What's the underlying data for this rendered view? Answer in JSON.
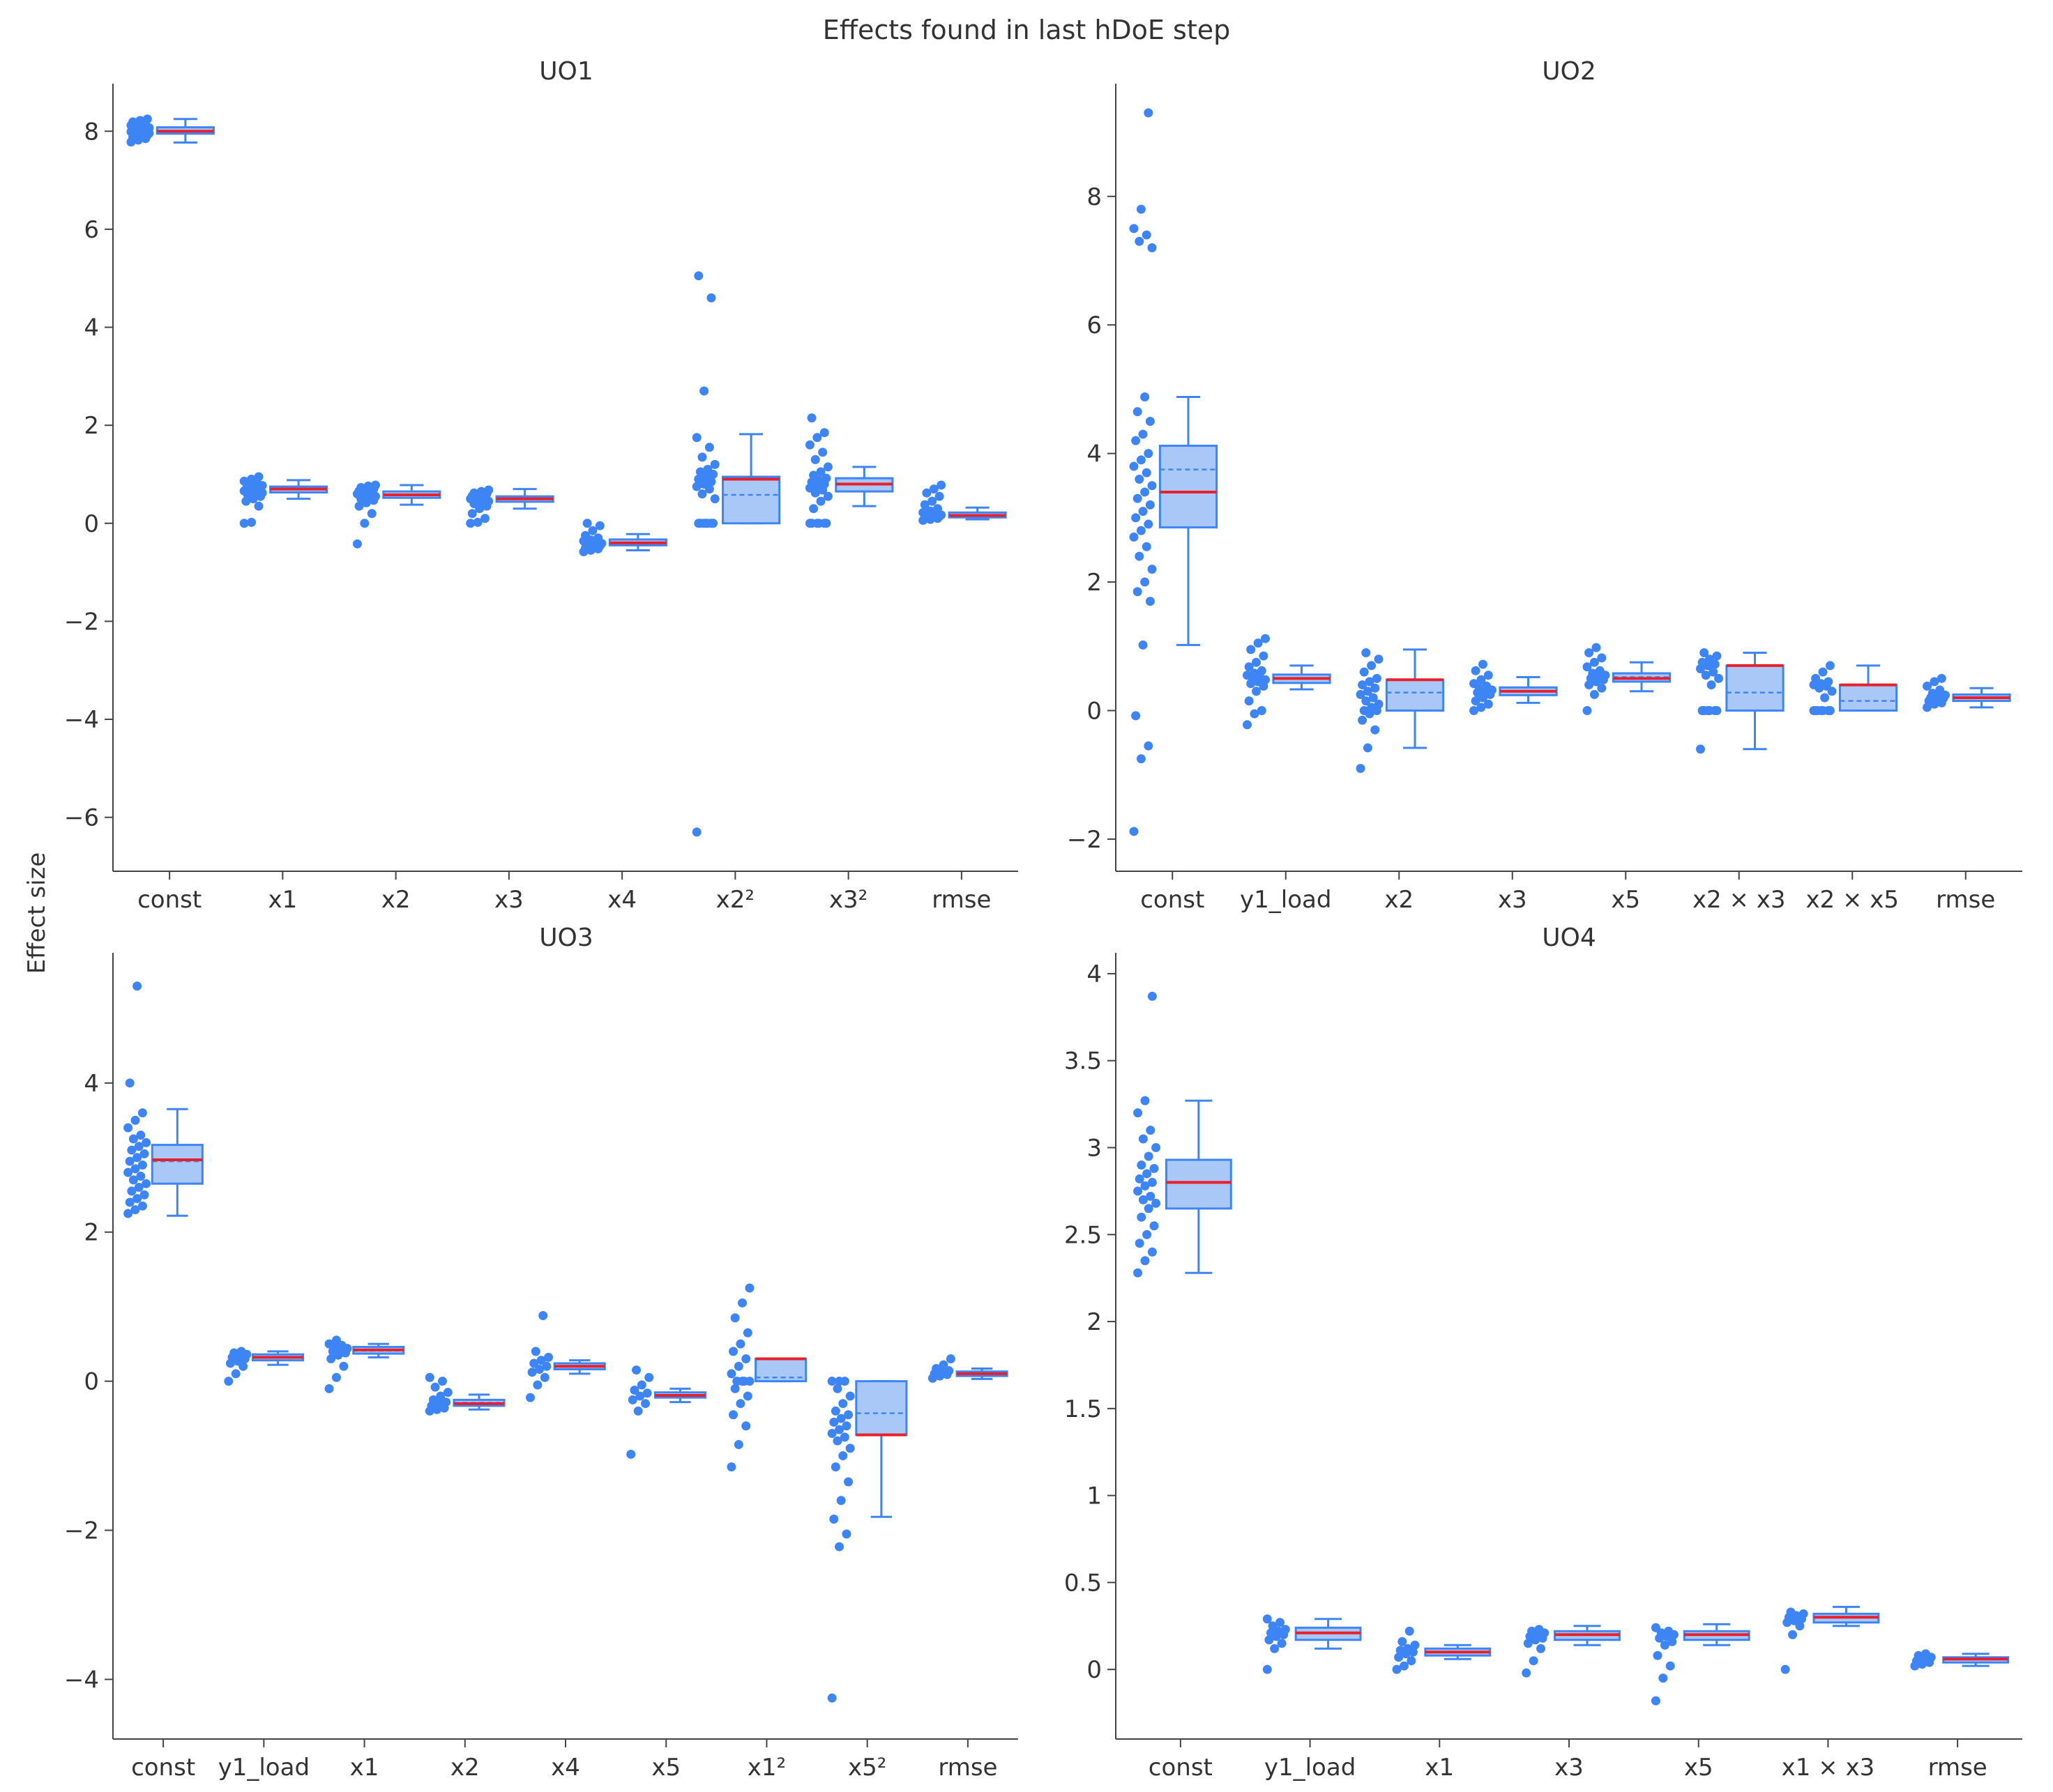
{
  "figure": {
    "title": "Effects found in last hDoE step",
    "ylabel": "Effect size",
    "colors": {
      "point": "#3d85f5",
      "box_fill": "#a9c7f7",
      "box_line": "#3d85f5",
      "median": "#e8202a",
      "mean": "#3d85f5",
      "axis": "#444444"
    }
  },
  "chart_data": [
    {
      "type": "box",
      "title": "UO1",
      "ylim": [
        -7.1,
        8.9
      ],
      "yticks": [
        8,
        6,
        4,
        2,
        0,
        -2,
        -4,
        -6
      ],
      "ytick_labels": [
        "8",
        "6",
        "4",
        "2",
        "0",
        "−2",
        "−4",
        "−6"
      ],
      "categories": [
        {
          "label": "const",
          "q1": 7.95,
          "median": 8.0,
          "q3": 8.08,
          "lower": 7.77,
          "upper": 8.25,
          "mean": 8.0,
          "points": [
            7.78,
            7.82,
            7.85,
            7.88,
            7.9,
            7.92,
            7.94,
            7.95,
            7.96,
            7.97,
            7.98,
            7.99,
            8.0,
            8.01,
            8.02,
            8.03,
            8.04,
            8.05,
            8.06,
            8.07,
            8.08,
            8.1,
            8.12,
            8.14,
            8.16,
            8.19,
            8.22,
            8.25
          ]
        },
        {
          "label": "x1",
          "q1": 0.63,
          "median": 0.7,
          "q3": 0.75,
          "lower": 0.5,
          "upper": 0.88,
          "mean": 0.69,
          "points": [
            0.0,
            0.02,
            0.35,
            0.45,
            0.5,
            0.55,
            0.58,
            0.6,
            0.62,
            0.63,
            0.65,
            0.66,
            0.68,
            0.69,
            0.7,
            0.71,
            0.72,
            0.74,
            0.75,
            0.77,
            0.8,
            0.83,
            0.86,
            0.9,
            0.95
          ]
        },
        {
          "label": "x2",
          "q1": 0.52,
          "median": 0.58,
          "q3": 0.65,
          "lower": 0.38,
          "upper": 0.78,
          "mean": 0.58,
          "points": [
            -0.42,
            0.0,
            0.2,
            0.35,
            0.42,
            0.47,
            0.5,
            0.53,
            0.55,
            0.57,
            0.58,
            0.6,
            0.62,
            0.64,
            0.66,
            0.68,
            0.7,
            0.73,
            0.76,
            0.78
          ]
        },
        {
          "label": "x3",
          "q1": 0.44,
          "median": 0.5,
          "q3": 0.55,
          "lower": 0.3,
          "upper": 0.7,
          "mean": 0.49,
          "points": [
            0.0,
            0.02,
            0.1,
            0.2,
            0.3,
            0.35,
            0.4,
            0.43,
            0.45,
            0.47,
            0.49,
            0.5,
            0.52,
            0.54,
            0.56,
            0.58,
            0.6,
            0.62,
            0.65,
            0.68
          ]
        },
        {
          "label": "x4",
          "q1": -0.45,
          "median": -0.4,
          "q3": -0.33,
          "lower": -0.55,
          "upper": -0.22,
          "mean": -0.4,
          "points": [
            -0.58,
            -0.55,
            -0.52,
            -0.5,
            -0.48,
            -0.46,
            -0.44,
            -0.42,
            -0.41,
            -0.4,
            -0.38,
            -0.36,
            -0.34,
            -0.3,
            -0.25,
            -0.15,
            -0.05,
            0.0
          ]
        },
        {
          "label": "x2²",
          "q1": 0.0,
          "median": 0.9,
          "q3": 0.95,
          "lower": 0.0,
          "upper": 1.82,
          "mean": 0.58,
          "points": [
            -6.3,
            0.0,
            0.0,
            0.0,
            0.0,
            0.0,
            0.0,
            0.0,
            0.5,
            0.6,
            0.7,
            0.75,
            0.8,
            0.85,
            0.9,
            0.95,
            1.0,
            1.05,
            1.1,
            1.2,
            1.35,
            1.55,
            1.75,
            2.7,
            4.6,
            5.05
          ]
        },
        {
          "label": "x3²",
          "q1": 0.65,
          "median": 0.8,
          "q3": 0.92,
          "lower": 0.35,
          "upper": 1.15,
          "mean": 0.79,
          "points": [
            0.0,
            0.0,
            0.0,
            0.0,
            0.0,
            0.0,
            0.3,
            0.45,
            0.55,
            0.62,
            0.68,
            0.72,
            0.76,
            0.8,
            0.84,
            0.88,
            0.92,
            0.98,
            1.05,
            1.15,
            1.3,
            1.45,
            1.6,
            1.75,
            1.85,
            2.15
          ]
        },
        {
          "label": "rmse",
          "q1": 0.12,
          "median": 0.16,
          "q3": 0.22,
          "lower": 0.08,
          "upper": 0.32,
          "mean": 0.17,
          "points": [
            0.06,
            0.08,
            0.1,
            0.12,
            0.13,
            0.14,
            0.15,
            0.16,
            0.17,
            0.18,
            0.2,
            0.22,
            0.25,
            0.3,
            0.38,
            0.45,
            0.55,
            0.62,
            0.7,
            0.78
          ]
        }
      ]
    },
    {
      "type": "box",
      "title": "UO2",
      "ylim": [
        -2.5,
        9.7
      ],
      "yticks": [
        8,
        6,
        4,
        2,
        0,
        -2
      ],
      "ytick_labels": [
        "8",
        "6",
        "4",
        "2",
        "0",
        "−2"
      ],
      "categories": [
        {
          "label": "const",
          "q1": 2.85,
          "median": 3.4,
          "q3": 4.12,
          "lower": 1.02,
          "upper": 4.88,
          "mean": 3.75,
          "points": [
            -1.88,
            -0.75,
            -0.55,
            -0.08,
            1.02,
            1.7,
            1.85,
            2.0,
            2.2,
            2.4,
            2.55,
            2.7,
            2.8,
            2.9,
            3.0,
            3.1,
            3.2,
            3.3,
            3.4,
            3.5,
            3.6,
            3.7,
            3.8,
            3.9,
            4.0,
            4.2,
            4.3,
            4.5,
            4.65,
            4.88,
            7.2,
            7.3,
            7.4,
            7.5,
            7.8,
            9.3
          ]
        },
        {
          "label": "y1_load",
          "q1": 0.43,
          "median": 0.5,
          "q3": 0.56,
          "lower": 0.33,
          "upper": 0.7,
          "mean": 0.5,
          "points": [
            -0.22,
            -0.05,
            0.0,
            0.15,
            0.3,
            0.38,
            0.42,
            0.45,
            0.48,
            0.5,
            0.52,
            0.55,
            0.58,
            0.62,
            0.68,
            0.75,
            0.85,
            0.95,
            1.05,
            1.12
          ]
        },
        {
          "label": "x2",
          "q1": 0.0,
          "median": 0.48,
          "q3": 0.48,
          "lower": -0.58,
          "upper": 0.95,
          "mean": 0.28,
          "points": [
            -0.9,
            -0.58,
            -0.3,
            -0.15,
            -0.05,
            0.0,
            0.0,
            0.05,
            0.1,
            0.15,
            0.2,
            0.25,
            0.3,
            0.35,
            0.4,
            0.45,
            0.5,
            0.6,
            0.7,
            0.8,
            0.9
          ]
        },
        {
          "label": "x3",
          "q1": 0.24,
          "median": 0.3,
          "q3": 0.36,
          "lower": 0.12,
          "upper": 0.52,
          "mean": 0.3,
          "points": [
            0.0,
            0.05,
            0.1,
            0.15,
            0.2,
            0.25,
            0.28,
            0.3,
            0.32,
            0.35,
            0.38,
            0.42,
            0.48,
            0.55,
            0.62,
            0.72
          ]
        },
        {
          "label": "x5",
          "q1": 0.45,
          "median": 0.5,
          "q3": 0.58,
          "lower": 0.3,
          "upper": 0.75,
          "mean": 0.52,
          "points": [
            0.0,
            0.25,
            0.35,
            0.4,
            0.45,
            0.48,
            0.5,
            0.52,
            0.55,
            0.58,
            0.62,
            0.68,
            0.75,
            0.82,
            0.9,
            0.98
          ]
        },
        {
          "label": "x2 × x3",
          "q1": 0.0,
          "median": 0.7,
          "q3": 0.7,
          "lower": -0.6,
          "upper": 0.9,
          "mean": 0.28,
          "points": [
            -0.6,
            0.0,
            0.0,
            0.0,
            0.0,
            0.0,
            0.0,
            0.4,
            0.5,
            0.55,
            0.6,
            0.65,
            0.7,
            0.72,
            0.75,
            0.8,
            0.85,
            0.9
          ]
        },
        {
          "label": "x2 × x5",
          "q1": 0.0,
          "median": 0.4,
          "q3": 0.4,
          "lower": 0.0,
          "upper": 0.7,
          "mean": 0.15,
          "points": [
            0.0,
            0.0,
            0.0,
            0.0,
            0.0,
            0.0,
            0.0,
            0.2,
            0.3,
            0.35,
            0.38,
            0.4,
            0.42,
            0.45,
            0.5,
            0.6,
            0.7
          ]
        },
        {
          "label": "rmse",
          "q1": 0.15,
          "median": 0.2,
          "q3": 0.25,
          "lower": 0.05,
          "upper": 0.35,
          "mean": 0.2,
          "points": [
            0.05,
            0.1,
            0.12,
            0.15,
            0.17,
            0.19,
            0.2,
            0.22,
            0.24,
            0.27,
            0.32,
            0.38,
            0.45,
            0.5
          ]
        }
      ]
    },
    {
      "type": "box",
      "title": "UO3",
      "ylim": [
        -4.8,
        5.7
      ],
      "yticks": [
        4,
        2,
        0,
        -2,
        -4
      ],
      "ytick_labels": [
        "4",
        "2",
        "0",
        "−2",
        "−4"
      ],
      "categories": [
        {
          "label": "const",
          "q1": 2.65,
          "median": 2.97,
          "q3": 3.17,
          "lower": 2.22,
          "upper": 3.65,
          "mean": 2.95,
          "points": [
            2.25,
            2.3,
            2.35,
            2.4,
            2.45,
            2.5,
            2.55,
            2.6,
            2.65,
            2.7,
            2.75,
            2.8,
            2.85,
            2.9,
            2.95,
            3.0,
            3.05,
            3.1,
            3.15,
            3.2,
            3.25,
            3.3,
            3.4,
            3.5,
            3.6,
            4.0,
            5.3
          ]
        },
        {
          "label": "y1_load",
          "q1": 0.28,
          "median": 0.32,
          "q3": 0.36,
          "lower": 0.22,
          "upper": 0.4,
          "mean": 0.32,
          "points": [
            0.0,
            0.1,
            0.2,
            0.24,
            0.27,
            0.3,
            0.32,
            0.34,
            0.36,
            0.38,
            0.4
          ]
        },
        {
          "label": "x1",
          "q1": 0.37,
          "median": 0.42,
          "q3": 0.46,
          "lower": 0.32,
          "upper": 0.5,
          "mean": 0.41,
          "points": [
            -0.1,
            0.05,
            0.2,
            0.3,
            0.35,
            0.38,
            0.4,
            0.42,
            0.44,
            0.46,
            0.48,
            0.5,
            0.55
          ]
        },
        {
          "label": "x2",
          "q1": -0.33,
          "median": -0.3,
          "q3": -0.25,
          "lower": -0.38,
          "upper": -0.18,
          "mean": -0.29,
          "points": [
            -0.4,
            -0.38,
            -0.36,
            -0.33,
            -0.3,
            -0.28,
            -0.25,
            -0.2,
            -0.15,
            -0.08,
            0.0,
            0.05
          ]
        },
        {
          "label": "x4",
          "q1": 0.16,
          "median": 0.2,
          "q3": 0.24,
          "lower": 0.1,
          "upper": 0.28,
          "mean": 0.2,
          "points": [
            -0.22,
            -0.05,
            0.05,
            0.12,
            0.16,
            0.2,
            0.24,
            0.28,
            0.32,
            0.4,
            0.88
          ]
        },
        {
          "label": "x5",
          "q1": -0.22,
          "median": -0.19,
          "q3": -0.15,
          "lower": -0.28,
          "upper": -0.1,
          "mean": -0.19,
          "points": [
            -0.98,
            -0.4,
            -0.3,
            -0.25,
            -0.2,
            -0.16,
            -0.12,
            -0.05,
            0.05,
            0.15
          ]
        },
        {
          "label": "x1²",
          "q1": 0.0,
          "median": 0.3,
          "q3": 0.3,
          "lower": 0.0,
          "upper": 0.3,
          "mean": 0.05,
          "points": [
            -1.15,
            -0.85,
            -0.6,
            -0.45,
            -0.3,
            -0.2,
            -0.1,
            0.0,
            0.0,
            0.0,
            0.0,
            0.1,
            0.2,
            0.3,
            0.4,
            0.5,
            0.65,
            0.85,
            1.05,
            1.25
          ]
        },
        {
          "label": "x5²",
          "q1": -0.72,
          "median": -0.72,
          "q3": 0.0,
          "lower": -1.82,
          "upper": 0.0,
          "mean": -0.43,
          "points": [
            -4.25,
            -2.22,
            -2.05,
            -1.85,
            -1.6,
            -1.35,
            -1.15,
            -1.0,
            -0.9,
            -0.8,
            -0.75,
            -0.7,
            -0.65,
            -0.6,
            -0.55,
            -0.5,
            -0.45,
            -0.4,
            -0.3,
            -0.2,
            -0.1,
            0.0,
            0.0,
            0.0
          ]
        },
        {
          "label": "rmse",
          "q1": 0.07,
          "median": 0.1,
          "q3": 0.13,
          "lower": 0.03,
          "upper": 0.17,
          "mean": 0.1,
          "points": [
            0.04,
            0.07,
            0.09,
            0.1,
            0.12,
            0.14,
            0.17,
            0.22,
            0.3
          ]
        }
      ]
    },
    {
      "type": "box",
      "title": "UO4",
      "ylim": [
        -0.4,
        4.1
      ],
      "yticks": [
        4,
        3.5,
        3,
        2.5,
        2,
        1.5,
        1,
        0.5,
        0
      ],
      "ytick_labels": [
        "4",
        "3.5",
        "3",
        "2.5",
        "2",
        "1.5",
        "1",
        "0.5",
        "0"
      ],
      "categories": [
        {
          "label": "const",
          "q1": 2.65,
          "median": 2.8,
          "q3": 2.93,
          "lower": 2.28,
          "upper": 3.27,
          "mean": 2.8,
          "points": [
            2.28,
            2.35,
            2.4,
            2.45,
            2.5,
            2.55,
            2.6,
            2.65,
            2.68,
            2.7,
            2.72,
            2.75,
            2.78,
            2.8,
            2.82,
            2.85,
            2.88,
            2.9,
            2.95,
            3.0,
            3.05,
            3.1,
            3.2,
            3.27,
            3.87
          ]
        },
        {
          "label": "y1_load",
          "q1": 0.17,
          "median": 0.21,
          "q3": 0.24,
          "lower": 0.12,
          "upper": 0.29,
          "mean": 0.21,
          "points": [
            0.0,
            0.12,
            0.15,
            0.17,
            0.19,
            0.2,
            0.21,
            0.22,
            0.23,
            0.25,
            0.27,
            0.29
          ]
        },
        {
          "label": "x1",
          "q1": 0.08,
          "median": 0.1,
          "q3": 0.12,
          "lower": 0.06,
          "upper": 0.14,
          "mean": 0.1,
          "points": [
            0.0,
            0.02,
            0.05,
            0.07,
            0.09,
            0.1,
            0.11,
            0.12,
            0.14,
            0.16,
            0.22
          ]
        },
        {
          "label": "x3",
          "q1": 0.17,
          "median": 0.2,
          "q3": 0.22,
          "lower": 0.14,
          "upper": 0.25,
          "mean": 0.2,
          "points": [
            -0.02,
            0.05,
            0.12,
            0.15,
            0.17,
            0.18,
            0.19,
            0.2,
            0.21,
            0.22,
            0.23
          ]
        },
        {
          "label": "x5",
          "q1": 0.17,
          "median": 0.2,
          "q3": 0.22,
          "lower": 0.14,
          "upper": 0.26,
          "mean": 0.2,
          "points": [
            -0.18,
            -0.05,
            0.02,
            0.08,
            0.14,
            0.16,
            0.18,
            0.19,
            0.2,
            0.21,
            0.22,
            0.24
          ]
        },
        {
          "label": "x1 × x3",
          "q1": 0.27,
          "median": 0.3,
          "q3": 0.32,
          "lower": 0.25,
          "upper": 0.36,
          "mean": 0.3,
          "points": [
            0.0,
            0.2,
            0.25,
            0.27,
            0.28,
            0.29,
            0.3,
            0.31,
            0.32,
            0.33
          ]
        },
        {
          "label": "rmse",
          "q1": 0.04,
          "median": 0.06,
          "q3": 0.07,
          "lower": 0.02,
          "upper": 0.09,
          "mean": 0.06,
          "points": [
            0.02,
            0.03,
            0.04,
            0.05,
            0.06,
            0.07,
            0.08,
            0.09
          ]
        }
      ]
    }
  ]
}
